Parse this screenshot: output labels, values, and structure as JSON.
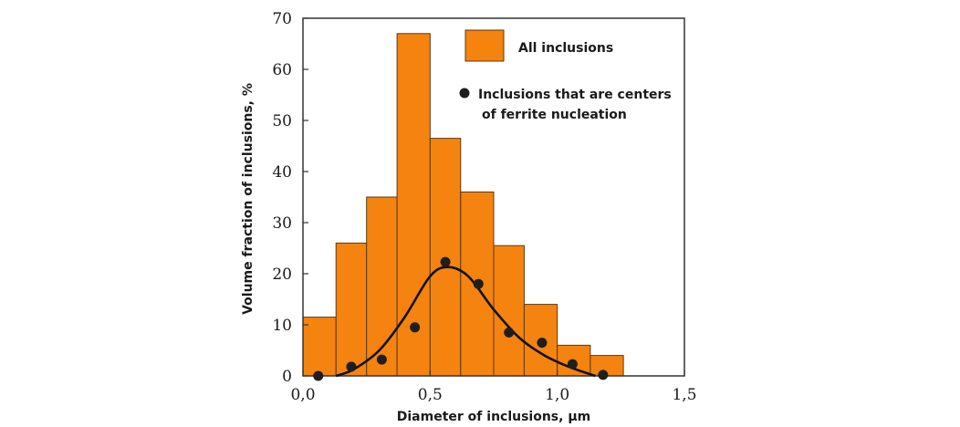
{
  "chart_data": {
    "type": "bar",
    "xlabel": "Diameter of inclusions, μm",
    "ylabel": "Volume fraction of inclusions, %",
    "xlim": [
      0,
      1.5
    ],
    "ylim": [
      0,
      70
    ],
    "x_ticks": [
      "0,0",
      "0,5",
      "1,0",
      "1,5"
    ],
    "y_ticks": [
      "0",
      "10",
      "20",
      "30",
      "40",
      "50",
      "60",
      "70"
    ],
    "grid": false,
    "legend_position": "top-right",
    "colors": {
      "bars": "#f5830f",
      "bar_edge": "#5a3a10",
      "points": "#1e1e1e",
      "curve": "#111111"
    },
    "series": [
      {
        "name": "All inclusions",
        "type": "histogram",
        "bins": [
          {
            "x0": 0.0,
            "x1": 0.13,
            "value": 11.5
          },
          {
            "x0": 0.13,
            "x1": 0.25,
            "value": 26
          },
          {
            "x0": 0.25,
            "x1": 0.37,
            "value": 35
          },
          {
            "x0": 0.37,
            "x1": 0.5,
            "value": 67
          },
          {
            "x0": 0.5,
            "x1": 0.62,
            "value": 46.5
          },
          {
            "x0": 0.62,
            "x1": 0.75,
            "value": 36
          },
          {
            "x0": 0.75,
            "x1": 0.87,
            "value": 25.5
          },
          {
            "x0": 0.87,
            "x1": 1.0,
            "value": 14
          },
          {
            "x0": 1.0,
            "x1": 1.13,
            "value": 6
          },
          {
            "x0": 1.13,
            "x1": 1.26,
            "value": 4
          }
        ]
      },
      {
        "name": "Inclusions that are centers of ferrite nucleation",
        "legend_lines": [
          "Inclusions that are centers",
          "of ferrite nucleation"
        ],
        "type": "scatter",
        "points": [
          {
            "x": 0.06,
            "y": 0
          },
          {
            "x": 0.19,
            "y": 1.8
          },
          {
            "x": 0.31,
            "y": 3.2
          },
          {
            "x": 0.44,
            "y": 9.5
          },
          {
            "x": 0.56,
            "y": 22.3
          },
          {
            "x": 0.69,
            "y": 18
          },
          {
            "x": 0.81,
            "y": 8.5
          },
          {
            "x": 0.94,
            "y": 6.5
          },
          {
            "x": 1.06,
            "y": 2.3
          },
          {
            "x": 1.18,
            "y": 0.2
          }
        ]
      },
      {
        "type": "fit_curve",
        "points": [
          {
            "x": 0.13,
            "y": 0
          },
          {
            "x": 0.2,
            "y": 1.3
          },
          {
            "x": 0.3,
            "y": 5
          },
          {
            "x": 0.4,
            "y": 11.5
          },
          {
            "x": 0.5,
            "y": 19.5
          },
          {
            "x": 0.57,
            "y": 21.3
          },
          {
            "x": 0.65,
            "y": 19.5
          },
          {
            "x": 0.75,
            "y": 13
          },
          {
            "x": 0.85,
            "y": 7.5
          },
          {
            "x": 0.95,
            "y": 4
          },
          {
            "x": 1.05,
            "y": 1.7
          },
          {
            "x": 1.15,
            "y": 0
          }
        ]
      }
    ]
  }
}
